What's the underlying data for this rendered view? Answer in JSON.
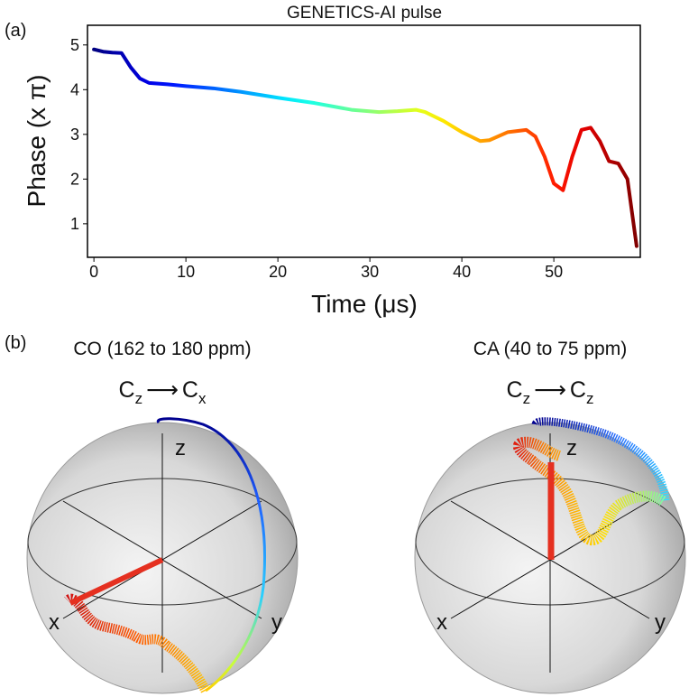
{
  "chart_data": {
    "type": "line",
    "title": "GENETICS-AI pulse",
    "xlabel": "Time (μs)",
    "ylabel": "Phase (x π)",
    "x": [
      0,
      1,
      2,
      3,
      4,
      5,
      6,
      8,
      10,
      13,
      16,
      20,
      24,
      28,
      31,
      33,
      35,
      36,
      38,
      40,
      42,
      43,
      45,
      47,
      48,
      49,
      50,
      51,
      52,
      53,
      54,
      55,
      56,
      57,
      58,
      59
    ],
    "values": [
      4.9,
      4.85,
      4.83,
      4.82,
      4.5,
      4.25,
      4.15,
      4.12,
      4.08,
      4.03,
      3.95,
      3.82,
      3.7,
      3.55,
      3.5,
      3.52,
      3.55,
      3.5,
      3.3,
      3.05,
      2.85,
      2.87,
      3.05,
      3.1,
      2.95,
      2.5,
      1.9,
      1.75,
      2.5,
      3.1,
      3.15,
      2.85,
      2.4,
      2.35,
      2.0,
      0.5
    ],
    "colormap": "jet",
    "xlim": [
      -0.7,
      59.4
    ],
    "ylim": [
      0.25,
      5.44
    ],
    "xticks": [
      0,
      10,
      20,
      30,
      40,
      50
    ],
    "yticks": [
      1,
      2,
      3,
      4,
      5
    ]
  },
  "panel_labels": [
    "(a)",
    "(b)"
  ],
  "spheres": [
    {
      "title": "CO (162 to 180 ppm)",
      "from": {
        "symbol": "C",
        "sub": "z"
      },
      "arrow": "⟶",
      "to": {
        "symbol": "C",
        "sub": "x"
      },
      "axes": {
        "x": "x",
        "y": "y",
        "z": "z"
      }
    },
    {
      "title": "CA (40 to 75 ppm)",
      "from": {
        "symbol": "C",
        "sub": "z"
      },
      "arrow": "⟶",
      "to": {
        "symbol": "C",
        "sub": "z"
      },
      "axes": {
        "x": "x",
        "y": "y",
        "z": "z"
      }
    }
  ]
}
